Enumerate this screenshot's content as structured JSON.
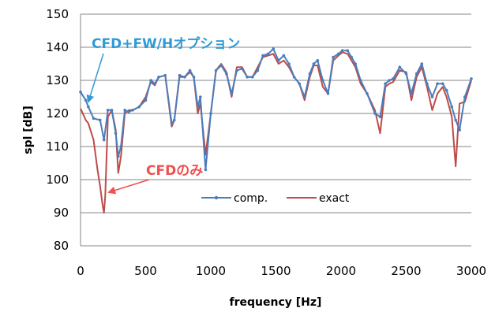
{
  "chart_data": {
    "type": "line",
    "xlabel": "frequency [Hz]",
    "ylabel": "spl [dB]",
    "xlim": [
      0,
      3000
    ],
    "ylim": [
      80,
      150
    ],
    "x_ticks": [
      "0",
      "500",
      "1000",
      "1500",
      "2000",
      "2500",
      "3000"
    ],
    "y_ticks": [
      "150",
      "140",
      "130",
      "120",
      "110",
      "100",
      "90",
      "80"
    ],
    "grid": "horizontal",
    "legend_position": "center",
    "colors": {
      "comp": "#4A7EBB",
      "exact": "#BE4B48",
      "ann_blue": "#2E9AD6",
      "ann_red": "#F05050"
    },
    "series": [
      {
        "name": "comp.",
        "x": [
          0,
          40,
          60,
          100,
          150,
          180,
          210,
          240,
          270,
          290,
          310,
          340,
          370,
          400,
          450,
          500,
          540,
          570,
          600,
          650,
          700,
          720,
          760,
          800,
          840,
          870,
          900,
          920,
          960,
          1000,
          1040,
          1080,
          1120,
          1160,
          1200,
          1240,
          1280,
          1320,
          1360,
          1400,
          1440,
          1480,
          1520,
          1560,
          1600,
          1640,
          1680,
          1720,
          1760,
          1790,
          1820,
          1860,
          1900,
          1940,
          1980,
          2010,
          2050,
          2080,
          2110,
          2150,
          2200,
          2260,
          2300,
          2340,
          2370,
          2400,
          2450,
          2500,
          2540,
          2580,
          2620,
          2660,
          2700,
          2740,
          2780,
          2810,
          2850,
          2880,
          2910,
          2950,
          3000
        ],
        "y": [
          126.5,
          124,
          122,
          118.5,
          118,
          112,
          121,
          121,
          114,
          107,
          110,
          121,
          120.5,
          121,
          122,
          124,
          130,
          129,
          131,
          131.5,
          117,
          118,
          131.5,
          131,
          133,
          131,
          122,
          125,
          103,
          120,
          133,
          134.5,
          132,
          126,
          133,
          133.5,
          131,
          131,
          133,
          137.5,
          138,
          139.5,
          136,
          137.5,
          135,
          131,
          129,
          125,
          132,
          135,
          136,
          130,
          126,
          137,
          138,
          139,
          139,
          137,
          135,
          130,
          126,
          120,
          119,
          129,
          130,
          130.5,
          134,
          132,
          126,
          132,
          135,
          129,
          125,
          129,
          129,
          127,
          122,
          118,
          115,
          125,
          130.5
        ]
      },
      {
        "name": "exact",
        "x": [
          0,
          40,
          60,
          100,
          130,
          150,
          170,
          180,
          190,
          210,
          240,
          270,
          290,
          310,
          340,
          370,
          400,
          450,
          500,
          540,
          570,
          600,
          650,
          700,
          720,
          760,
          800,
          840,
          870,
          900,
          920,
          960,
          1000,
          1040,
          1080,
          1120,
          1160,
          1200,
          1240,
          1280,
          1320,
          1360,
          1400,
          1440,
          1480,
          1520,
          1560,
          1600,
          1640,
          1680,
          1720,
          1760,
          1790,
          1820,
          1860,
          1900,
          1940,
          1980,
          2010,
          2050,
          2080,
          2110,
          2150,
          2200,
          2260,
          2300,
          2340,
          2370,
          2400,
          2450,
          2500,
          2540,
          2580,
          2620,
          2660,
          2700,
          2740,
          2780,
          2810,
          2850,
          2880,
          2910,
          2950,
          3000
        ],
        "y": [
          121.5,
          118,
          117,
          112,
          103,
          98,
          92,
          90,
          95,
          119,
          121,
          115,
          102,
          107,
          120,
          121,
          121,
          122,
          125,
          129.5,
          128.5,
          131,
          131.5,
          116,
          118,
          131,
          131,
          132.5,
          131,
          120,
          123,
          107.5,
          120,
          133,
          135,
          132.5,
          125,
          134,
          134,
          131,
          131,
          134,
          137,
          137.5,
          138,
          135,
          136,
          134,
          131,
          129,
          124,
          131,
          134.5,
          134.5,
          128,
          126,
          136,
          137.5,
          138.5,
          138,
          136,
          134,
          129,
          126,
          121,
          114,
          128,
          129,
          129.5,
          133,
          132.5,
          124,
          131,
          134,
          128,
          121,
          126,
          128,
          125,
          119,
          104,
          123,
          123.5,
          130
        ]
      }
    ],
    "annotations": [
      {
        "text": "CFD+FW/Hオプション"
      },
      {
        "text": "CFDのみ"
      }
    ]
  }
}
